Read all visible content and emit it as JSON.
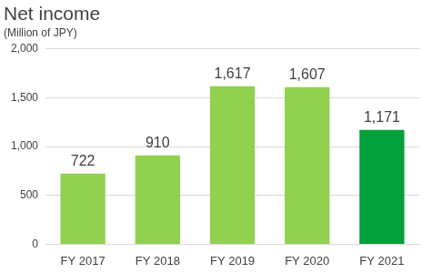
{
  "chart_data": {
    "type": "bar",
    "title": "Net income",
    "subtitle": "(Million of JPY)",
    "categories": [
      "FY 2017",
      "FY 2018",
      "FY 2019",
      "FY 2020",
      "FY 2021"
    ],
    "values": [
      722,
      910,
      1617,
      1607,
      1171
    ],
    "value_labels": [
      "722",
      "910",
      "1,617",
      "1,607",
      "1,171"
    ],
    "colors": [
      "#92d050",
      "#92d050",
      "#92d050",
      "#92d050",
      "#00a03c"
    ],
    "ylim": [
      0,
      2000
    ],
    "yticks": [
      0,
      500,
      {
        "value": 1000,
        "label": "1,000"
      },
      {
        "value": 1500,
        "label": "1,500"
      },
      {
        "value": 2000,
        "label": "2,000"
      }
    ],
    "grid": true,
    "data_labels": true
  }
}
